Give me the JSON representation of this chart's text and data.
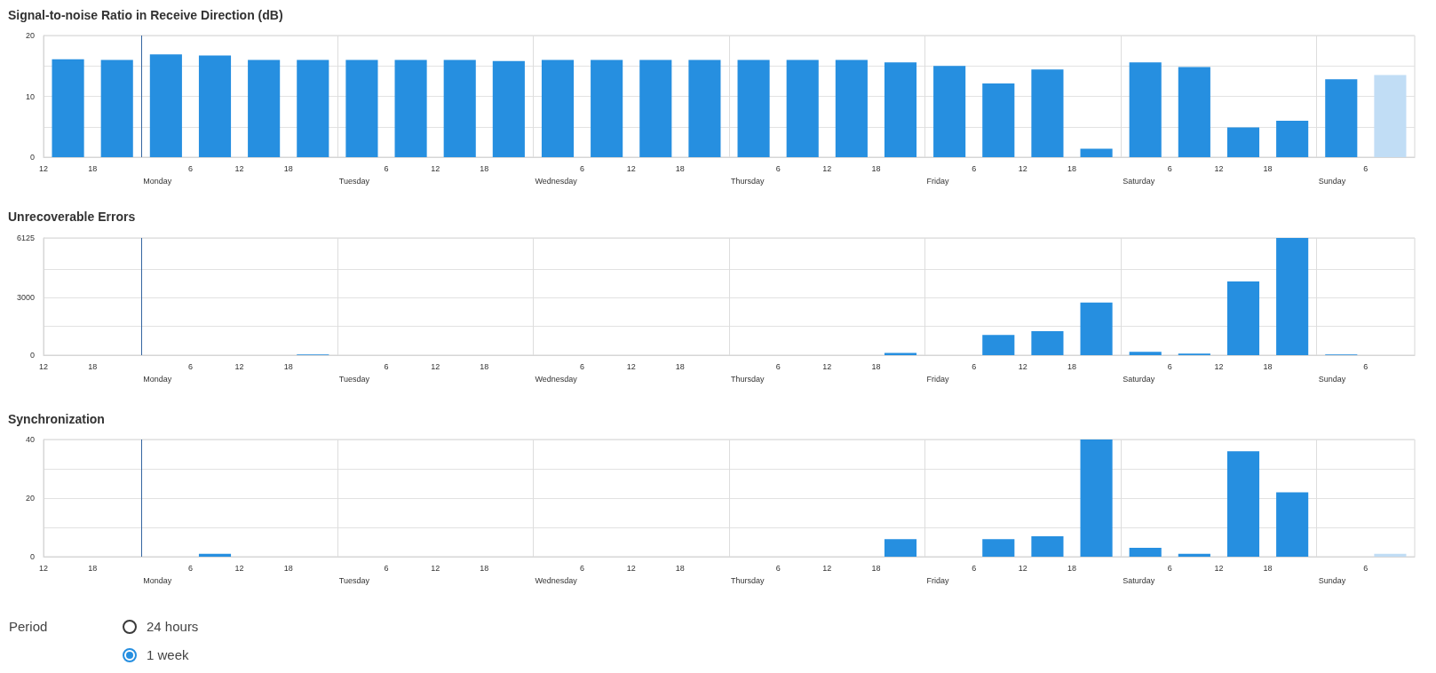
{
  "chart_data": [
    {
      "type": "bar",
      "title": "Signal-to-noise Ratio in Receive Direction (dB)",
      "x": [
        "--01-07T15:00",
        "--01-07T21:00",
        "--01-08T03:00",
        "--01-08T09:00",
        "--01-08T15:00",
        "--01-08T21:00",
        "--01-09T03:00",
        "--01-09T09:00",
        "--01-09T15:00",
        "--01-09T21:00",
        "--01-10T03:00",
        "--01-10T09:00",
        "--01-10T15:00",
        "--01-10T21:00",
        "--01-11T03:00",
        "--01-11T09:00",
        "--01-11T15:00",
        "--01-11T21:00",
        "--01-12T03:00",
        "--01-12T09:00",
        "--01-12T15:00",
        "--01-12T21:00",
        "--01-13T03:00",
        "--01-13T09:00",
        "--01-13T15:00",
        "--01-13T21:00",
        "--01-14T03:00",
        "--01-14T09:00"
      ],
      "values": [
        16.1,
        16,
        16.9,
        16.7,
        16,
        16,
        16,
        16,
        16,
        15.8,
        16,
        16,
        16,
        16,
        16,
        16,
        16,
        15.6,
        15,
        12.1,
        14.4,
        1.4,
        15.6,
        14.8,
        4.9,
        6,
        12.8,
        13.5
      ],
      "colors": [
        "#268fe0",
        "#268fe0",
        "#268fe0",
        "#268fe0",
        "#268fe0",
        "#268fe0",
        "#268fe0",
        "#268fe0",
        "#268fe0",
        "#268fe0",
        "#268fe0",
        "#268fe0",
        "#268fe0",
        "#268fe0",
        "#268fe0",
        "#268fe0",
        "#268fe0",
        "#268fe0",
        "#268fe0",
        "#268fe0",
        "#268fe0",
        "#268fe0",
        "#268fe0",
        "#268fe0",
        "#268fe0",
        "#268fe0",
        "#268fe0",
        "#c1ddf5"
      ],
      "xlim": [
        "--01-07T12:00",
        "--01-14T12:00"
      ],
      "xticks": [
        {
          "value": "--01-07T12:00",
          "label": "12"
        },
        {
          "value": "--01-07T18:00",
          "label": "18"
        },
        {
          "value": "--01-08T06:00",
          "label": "6"
        },
        {
          "value": "--01-08T12:00",
          "label": "12"
        },
        {
          "value": "--01-08T18:00",
          "label": "18"
        },
        {
          "value": "--01-09T06:00",
          "label": "6"
        },
        {
          "value": "--01-09T12:00",
          "label": "12"
        },
        {
          "value": "--01-09T18:00",
          "label": "18"
        },
        {
          "value": "--01-10T06:00",
          "label": "6"
        },
        {
          "value": "--01-10T12:00",
          "label": "12"
        },
        {
          "value": "--01-10T18:00",
          "label": "18"
        },
        {
          "value": "--01-11T06:00",
          "label": "6"
        },
        {
          "value": "--01-11T12:00",
          "label": "12"
        },
        {
          "value": "--01-11T18:00",
          "label": "18"
        },
        {
          "value": "--01-12T06:00",
          "label": "6"
        },
        {
          "value": "--01-12T12:00",
          "label": "12"
        },
        {
          "value": "--01-12T18:00",
          "label": "18"
        },
        {
          "value": "--01-13T06:00",
          "label": "6"
        },
        {
          "value": "--01-13T12:00",
          "label": "12"
        },
        {
          "value": "--01-13T18:00",
          "label": "18"
        },
        {
          "value": "--01-14T06:00",
          "label": "6"
        }
      ],
      "ylim": [
        0,
        20
      ],
      "yticks": [
        0,
        {
          "value": 5,
          "label": null
        },
        10,
        {
          "value": 15,
          "label": null
        },
        20
      ],
      "grid": "y",
      "ref_lines": [
        {
          "axis": "x",
          "value": "--01-08T00:00",
          "label": "Monday",
          "color": "#3565a0"
        },
        {
          "axis": "x",
          "value": "--01-09T00:00",
          "label": "Tuesday",
          "color": "#dddddd"
        },
        {
          "axis": "x",
          "value": "--01-10T00:00",
          "label": "Wednesday",
          "color": "#dddddd"
        },
        {
          "axis": "x",
          "value": "--01-11T00:00",
          "label": "Thursday",
          "color": "#dddddd"
        },
        {
          "axis": "x",
          "value": "--01-12T00:00",
          "label": "Friday",
          "color": "#dddddd"
        },
        {
          "axis": "x",
          "value": "--01-13T00:00",
          "label": "Saturday",
          "color": "#dddddd"
        },
        {
          "axis": "x",
          "value": "--01-14T00:00",
          "label": "Sunday",
          "color": "#dddddd"
        }
      ]
    },
    {
      "type": "bar",
      "title": "Unrecoverable Errors",
      "x": [
        "--01-07T15:00",
        "--01-07T21:00",
        "--01-08T03:00",
        "--01-08T09:00",
        "--01-08T15:00",
        "--01-08T21:00",
        "--01-09T03:00",
        "--01-09T09:00",
        "--01-09T15:00",
        "--01-09T21:00",
        "--01-10T03:00",
        "--01-10T09:00",
        "--01-10T15:00",
        "--01-10T21:00",
        "--01-11T03:00",
        "--01-11T09:00",
        "--01-11T15:00",
        "--01-11T21:00",
        "--01-12T03:00",
        "--01-12T09:00",
        "--01-12T15:00",
        "--01-12T21:00",
        "--01-13T03:00",
        "--01-13T09:00",
        "--01-13T15:00",
        "--01-13T21:00",
        "--01-14T03:00",
        "--01-14T09:00"
      ],
      "values": [
        0,
        0,
        0,
        0,
        0,
        30,
        0,
        0,
        0,
        0,
        0,
        0,
        0,
        0,
        0,
        0,
        0,
        120,
        0,
        1050,
        1250,
        2750,
        170,
        80,
        3850,
        6125,
        30,
        0
      ],
      "colors": [
        "#268fe0",
        "#268fe0",
        "#268fe0",
        "#268fe0",
        "#268fe0",
        "#268fe0",
        "#268fe0",
        "#268fe0",
        "#268fe0",
        "#268fe0",
        "#268fe0",
        "#268fe0",
        "#268fe0",
        "#268fe0",
        "#268fe0",
        "#268fe0",
        "#268fe0",
        "#268fe0",
        "#268fe0",
        "#268fe0",
        "#268fe0",
        "#268fe0",
        "#268fe0",
        "#268fe0",
        "#268fe0",
        "#268fe0",
        "#268fe0",
        "#c1ddf5"
      ],
      "xlim": [
        "--01-07T12:00",
        "--01-14T12:00"
      ],
      "xticks": [
        {
          "value": "--01-07T12:00",
          "label": "12"
        },
        {
          "value": "--01-07T18:00",
          "label": "18"
        },
        {
          "value": "--01-08T06:00",
          "label": "6"
        },
        {
          "value": "--01-08T12:00",
          "label": "12"
        },
        {
          "value": "--01-08T18:00",
          "label": "18"
        },
        {
          "value": "--01-09T06:00",
          "label": "6"
        },
        {
          "value": "--01-09T12:00",
          "label": "12"
        },
        {
          "value": "--01-09T18:00",
          "label": "18"
        },
        {
          "value": "--01-10T06:00",
          "label": "6"
        },
        {
          "value": "--01-10T12:00",
          "label": "12"
        },
        {
          "value": "--01-10T18:00",
          "label": "18"
        },
        {
          "value": "--01-11T06:00",
          "label": "6"
        },
        {
          "value": "--01-11T12:00",
          "label": "12"
        },
        {
          "value": "--01-11T18:00",
          "label": "18"
        },
        {
          "value": "--01-12T06:00",
          "label": "6"
        },
        {
          "value": "--01-12T12:00",
          "label": "12"
        },
        {
          "value": "--01-12T18:00",
          "label": "18"
        },
        {
          "value": "--01-13T06:00",
          "label": "6"
        },
        {
          "value": "--01-13T12:00",
          "label": "12"
        },
        {
          "value": "--01-13T18:00",
          "label": "18"
        },
        {
          "value": "--01-14T06:00",
          "label": "6"
        }
      ],
      "ylim": [
        0,
        6125
      ],
      "yticks": [
        0,
        {
          "value": 1500,
          "label": null
        },
        3000,
        {
          "value": 4500,
          "label": null
        },
        6125
      ],
      "grid": "y",
      "ref_lines": [
        {
          "axis": "x",
          "value": "--01-08T00:00",
          "label": "Monday",
          "color": "#3565a0"
        },
        {
          "axis": "x",
          "value": "--01-09T00:00",
          "label": "Tuesday",
          "color": "#dddddd"
        },
        {
          "axis": "x",
          "value": "--01-10T00:00",
          "label": "Wednesday",
          "color": "#dddddd"
        },
        {
          "axis": "x",
          "value": "--01-11T00:00",
          "label": "Thursday",
          "color": "#dddddd"
        },
        {
          "axis": "x",
          "value": "--01-12T00:00",
          "label": "Friday",
          "color": "#dddddd"
        },
        {
          "axis": "x",
          "value": "--01-13T00:00",
          "label": "Saturday",
          "color": "#dddddd"
        },
        {
          "axis": "x",
          "value": "--01-14T00:00",
          "label": "Sunday",
          "color": "#dddddd"
        }
      ]
    },
    {
      "type": "bar",
      "title": "Synchronization",
      "x": [
        "--01-07T15:00",
        "--01-07T21:00",
        "--01-08T03:00",
        "--01-08T09:00",
        "--01-08T15:00",
        "--01-08T21:00",
        "--01-09T03:00",
        "--01-09T09:00",
        "--01-09T15:00",
        "--01-09T21:00",
        "--01-10T03:00",
        "--01-10T09:00",
        "--01-10T15:00",
        "--01-10T21:00",
        "--01-11T03:00",
        "--01-11T09:00",
        "--01-11T15:00",
        "--01-11T21:00",
        "--01-12T03:00",
        "--01-12T09:00",
        "--01-12T15:00",
        "--01-12T21:00",
        "--01-13T03:00",
        "--01-13T09:00",
        "--01-13T15:00",
        "--01-13T21:00",
        "--01-14T03:00",
        "--01-14T09:00"
      ],
      "values": [
        0,
        0,
        0,
        1,
        0,
        0,
        0,
        0,
        0,
        0,
        0,
        0,
        0,
        0,
        0,
        0,
        0,
        6,
        0,
        6,
        7,
        40,
        3,
        1,
        36,
        22,
        0,
        1
      ],
      "colors": [
        "#268fe0",
        "#268fe0",
        "#268fe0",
        "#268fe0",
        "#268fe0",
        "#268fe0",
        "#268fe0",
        "#268fe0",
        "#268fe0",
        "#268fe0",
        "#268fe0",
        "#268fe0",
        "#268fe0",
        "#268fe0",
        "#268fe0",
        "#268fe0",
        "#268fe0",
        "#268fe0",
        "#268fe0",
        "#268fe0",
        "#268fe0",
        "#268fe0",
        "#268fe0",
        "#268fe0",
        "#268fe0",
        "#268fe0",
        "#268fe0",
        "#c1ddf5"
      ],
      "xlim": [
        "--01-07T12:00",
        "--01-14T12:00"
      ],
      "xticks": [
        {
          "value": "--01-07T12:00",
          "label": "12"
        },
        {
          "value": "--01-07T18:00",
          "label": "18"
        },
        {
          "value": "--01-08T06:00",
          "label": "6"
        },
        {
          "value": "--01-08T12:00",
          "label": "12"
        },
        {
          "value": "--01-08T18:00",
          "label": "18"
        },
        {
          "value": "--01-09T06:00",
          "label": "6"
        },
        {
          "value": "--01-09T12:00",
          "label": "12"
        },
        {
          "value": "--01-09T18:00",
          "label": "18"
        },
        {
          "value": "--01-10T06:00",
          "label": "6"
        },
        {
          "value": "--01-10T12:00",
          "label": "12"
        },
        {
          "value": "--01-10T18:00",
          "label": "18"
        },
        {
          "value": "--01-11T06:00",
          "label": "6"
        },
        {
          "value": "--01-11T12:00",
          "label": "12"
        },
        {
          "value": "--01-11T18:00",
          "label": "18"
        },
        {
          "value": "--01-12T06:00",
          "label": "6"
        },
        {
          "value": "--01-12T12:00",
          "label": "12"
        },
        {
          "value": "--01-12T18:00",
          "label": "18"
        },
        {
          "value": "--01-13T06:00",
          "label": "6"
        },
        {
          "value": "--01-13T12:00",
          "label": "12"
        },
        {
          "value": "--01-13T18:00",
          "label": "18"
        },
        {
          "value": "--01-14T06:00",
          "label": "6"
        }
      ],
      "ylim": [
        0,
        40
      ],
      "yticks": [
        0,
        {
          "value": 10,
          "label": null
        },
        20,
        {
          "value": 30,
          "label": null
        },
        40
      ],
      "grid": "y",
      "ref_lines": [
        {
          "axis": "x",
          "value": "--01-08T00:00",
          "label": "Monday",
          "color": "#3565a0"
        },
        {
          "axis": "x",
          "value": "--01-09T00:00",
          "label": "Tuesday",
          "color": "#dddddd"
        },
        {
          "axis": "x",
          "value": "--01-10T00:00",
          "label": "Wednesday",
          "color": "#dddddd"
        },
        {
          "axis": "x",
          "value": "--01-11T00:00",
          "label": "Thursday",
          "color": "#dddddd"
        },
        {
          "axis": "x",
          "value": "--01-12T00:00",
          "label": "Friday",
          "color": "#dddddd"
        },
        {
          "axis": "x",
          "value": "--01-13T00:00",
          "label": "Saturday",
          "color": "#dddddd"
        },
        {
          "axis": "x",
          "value": "--01-14T00:00",
          "label": "Sunday",
          "color": "#dddddd"
        }
      ]
    },
    {
      "type": "other",
      "title": "Period",
      "annotations": [
        "24 hours",
        "1 week"
      ]
    }
  ]
}
